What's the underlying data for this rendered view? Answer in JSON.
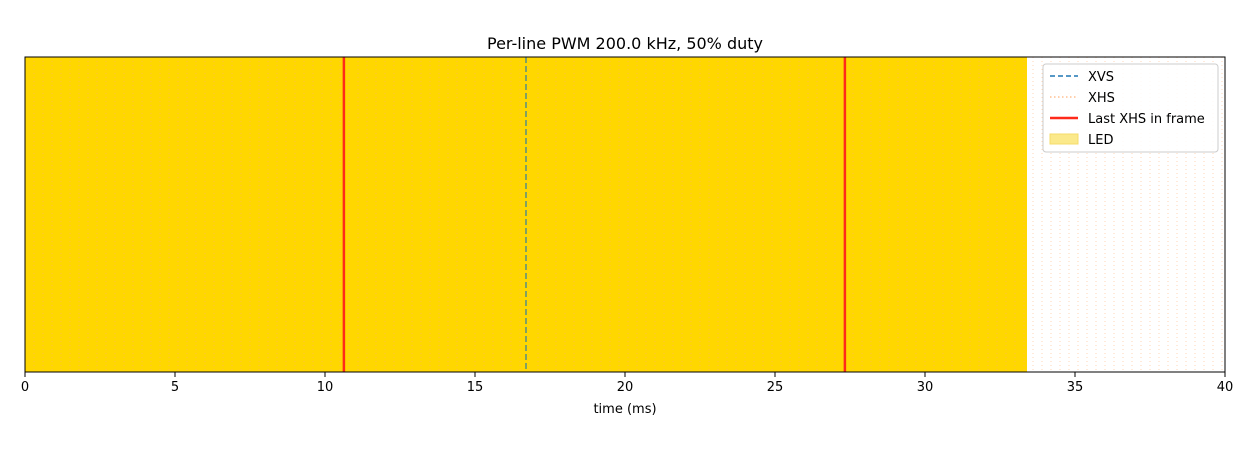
{
  "chart_data": {
    "type": "line",
    "title": "Per-line PWM 200.0 kHz, 50% duty",
    "xlabel": "time (ms)",
    "ylabel": "",
    "xlim": [
      0,
      40
    ],
    "x_ticks": [
      0,
      5,
      10,
      15,
      20,
      25,
      30,
      35,
      40
    ],
    "x_tick_labels": [
      "0",
      "5",
      "10",
      "15",
      "20",
      "25",
      "30",
      "35",
      "40"
    ],
    "y_ticks_visible": false,
    "grid": false,
    "legend_position": "top-right",
    "led_on_span": [
      0,
      33.4
    ],
    "xvs_times": [
      16.7
    ],
    "last_xhs_times": [
      10.63,
      27.33
    ],
    "xhs_period_ms": 0.1,
    "series": [
      {
        "name": "XVS",
        "style": "dashed",
        "color": "#1f77b4"
      },
      {
        "name": "XHS",
        "style": "dotted",
        "color": "#ff7f0e"
      },
      {
        "name": "Last XHS in frame",
        "style": "solid",
        "color": "#ff0000"
      },
      {
        "name": "LED",
        "style": "fill",
        "color": "#ffd700"
      }
    ],
    "colors": {
      "led_fill": "#ffd700",
      "led_legend_fill": "#fbe98b",
      "xvs_line": "#1f77b4",
      "xhs_line": "#ffb27a",
      "last_xhs_line": "#ff2a1a"
    }
  }
}
